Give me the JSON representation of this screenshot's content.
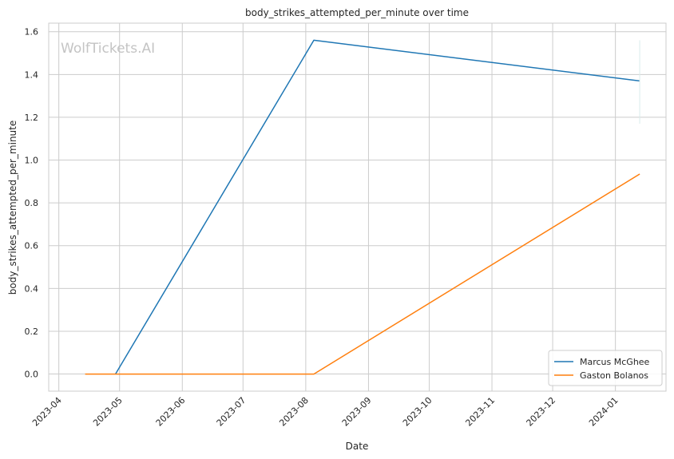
{
  "watermark": "WolfTickets.AI",
  "chart_data": {
    "type": "line",
    "title": "body_strikes_attempted_per_minute over time",
    "xlabel": "Date",
    "ylabel": "body_strikes_attempted_per_minute",
    "x_ticks": [
      {
        "date": "2023-04-01",
        "label": "2023-04"
      },
      {
        "date": "2023-05-01",
        "label": "2023-05"
      },
      {
        "date": "2023-06-01",
        "label": "2023-06"
      },
      {
        "date": "2023-07-01",
        "label": "2023-07"
      },
      {
        "date": "2023-08-01",
        "label": "2023-08"
      },
      {
        "date": "2023-09-01",
        "label": "2023-09"
      },
      {
        "date": "2023-10-01",
        "label": "2023-10"
      },
      {
        "date": "2023-11-01",
        "label": "2023-11"
      },
      {
        "date": "2023-12-01",
        "label": "2023-12"
      },
      {
        "date": "2024-01-01",
        "label": "2024-01"
      }
    ],
    "y_ticks": [
      "0.0",
      "0.2",
      "0.4",
      "0.6",
      "0.8",
      "1.0",
      "1.2",
      "1.4",
      "1.6"
    ],
    "xlim": [
      "2023-03-27",
      "2024-01-26"
    ],
    "ylim": [
      -0.08,
      1.64
    ],
    "grid": true,
    "legend_position": "bottom-right",
    "series": [
      {
        "name": "Marcus McGhee",
        "color": "#1f77b4",
        "points": [
          {
            "x": "2023-04-29",
            "y": 0.0
          },
          {
            "x": "2023-08-05",
            "y": 1.56
          },
          {
            "x": "2024-01-13",
            "y": 1.37
          }
        ]
      },
      {
        "name": "Gaston Bolanos",
        "color": "#ff7f0e",
        "points": [
          {
            "x": "2023-04-14",
            "y": 0.0
          },
          {
            "x": "2023-08-05",
            "y": 0.0
          },
          {
            "x": "2024-01-13",
            "y": 0.935
          }
        ]
      }
    ]
  }
}
